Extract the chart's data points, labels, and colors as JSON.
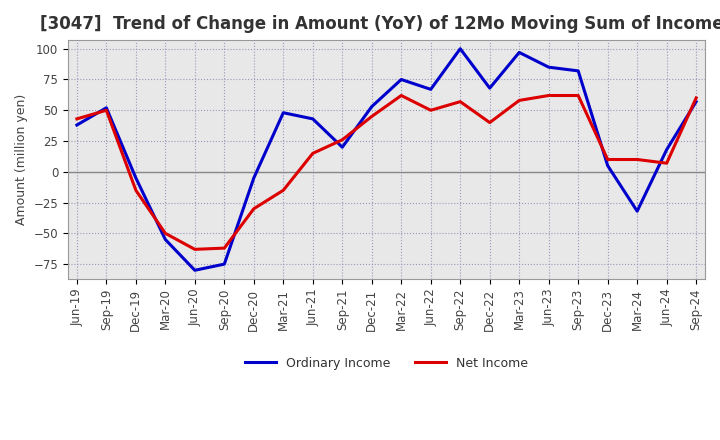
{
  "title": "[3047]  Trend of Change in Amount (YoY) of 12Mo Moving Sum of Incomes",
  "ylabel": "Amount (million yen)",
  "background_color": "#ffffff",
  "plot_bg_color": "#e8e8e8",
  "grid_color": "#9999bb",
  "x_labels": [
    "Jun-19",
    "Sep-19",
    "Dec-19",
    "Mar-20",
    "Jun-20",
    "Sep-20",
    "Dec-20",
    "Mar-21",
    "Jun-21",
    "Sep-21",
    "Dec-21",
    "Mar-22",
    "Jun-22",
    "Sep-22",
    "Dec-22",
    "Mar-23",
    "Jun-23",
    "Sep-23",
    "Dec-23",
    "Mar-24",
    "Jun-24",
    "Sep-24"
  ],
  "ordinary_income": [
    38,
    52,
    -5,
    -55,
    -80,
    -75,
    -5,
    48,
    43,
    20,
    53,
    75,
    67,
    100,
    68,
    97,
    85,
    82,
    5,
    -32,
    18,
    57
  ],
  "net_income": [
    43,
    50,
    -15,
    -50,
    -63,
    -62,
    -30,
    -15,
    15,
    26,
    45,
    62,
    50,
    57,
    40,
    58,
    62,
    62,
    10,
    10,
    7,
    60
  ],
  "ordinary_color": "#0000cc",
  "net_color": "#dd0000",
  "ylim": [
    -87,
    107
  ],
  "yticks": [
    -75,
    -50,
    -25,
    0,
    25,
    50,
    75,
    100
  ],
  "line_width": 2.2,
  "title_fontsize": 12,
  "tick_fontsize": 8.5,
  "ylabel_fontsize": 9
}
